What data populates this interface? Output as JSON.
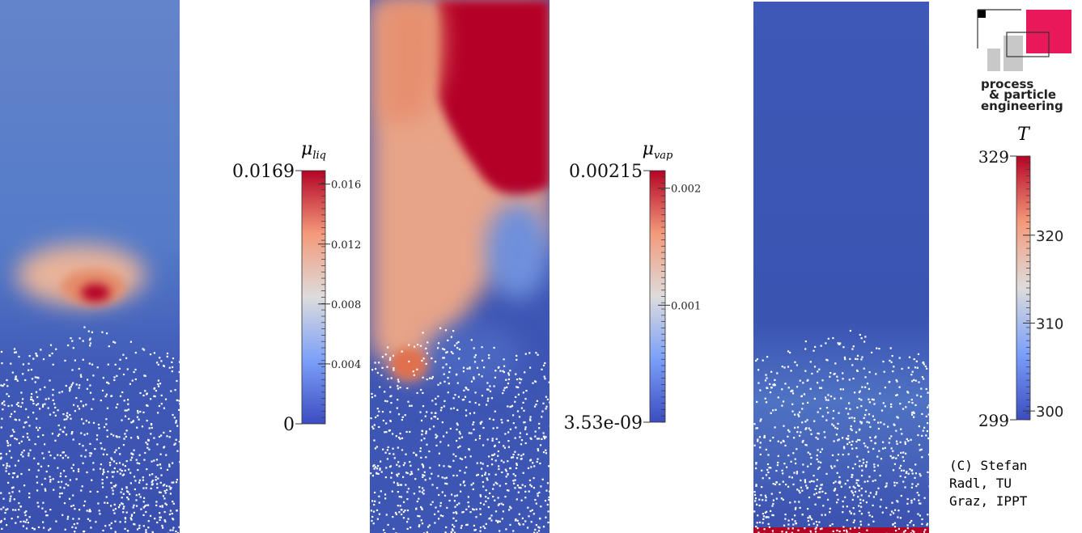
{
  "colorbars": [
    {
      "title": "μ",
      "subscript": "liq",
      "min": 0,
      "max": 0.0169,
      "ticks": [
        0.004,
        0.008,
        0.012,
        0.016
      ]
    },
    {
      "title": "μ",
      "subscript": "vap",
      "min": {
        "value": 3.53e-09,
        "label": "3.53e-09"
      },
      "max": 0.00215,
      "ticks": [
        0.001,
        0.002
      ]
    },
    {
      "title": "T",
      "min": 299,
      "max": 329,
      "ticks": [
        300,
        310,
        320
      ]
    }
  ],
  "logo": {
    "lines": [
      "process",
      "& particle",
      "engineering"
    ]
  },
  "credit": [
    "(C) Stefan",
    "Radl, TU",
    "Graz, IPPT"
  ]
}
